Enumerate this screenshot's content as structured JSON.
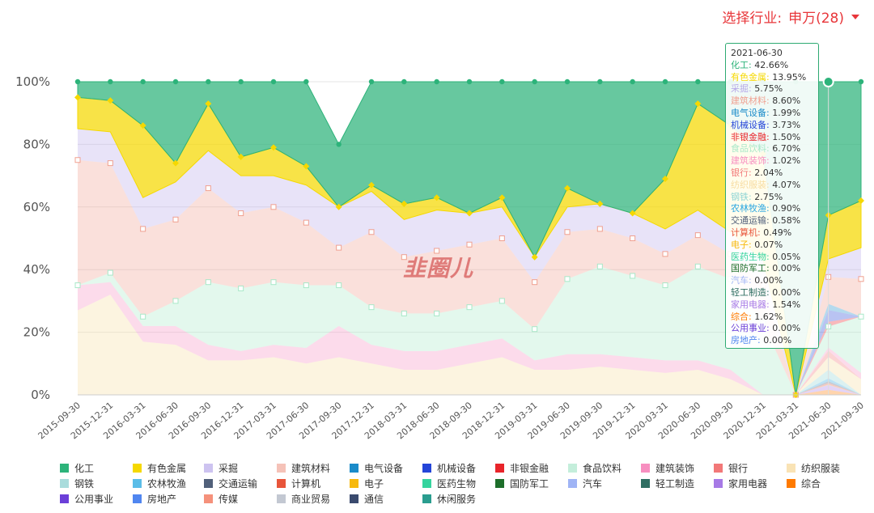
{
  "header": {
    "selector_label": "选择行业:",
    "selector_value": "申万(28)"
  },
  "watermark": "韭圈儿",
  "tooltip": {
    "date": "2021-06-30",
    "rows": [
      {
        "name": "化工",
        "value": "42.66%",
        "color": "#2db37a"
      },
      {
        "name": "有色金属",
        "value": "13.95%",
        "color": "#f5d800"
      },
      {
        "name": "采掘",
        "value": "5.75%",
        "color": "#b7a9e8"
      },
      {
        "name": "建筑材料",
        "value": "8.60%",
        "color": "#f0a090"
      },
      {
        "name": "电气设备",
        "value": "1.99%",
        "color": "#1a8bc9"
      },
      {
        "name": "机械设备",
        "value": "3.73%",
        "color": "#2445d8"
      },
      {
        "name": "非银金融",
        "value": "1.50%",
        "color": "#e8242a"
      },
      {
        "name": "食品饮料",
        "value": "6.70%",
        "color": "#a8e8c8"
      },
      {
        "name": "建筑装饰",
        "value": "1.02%",
        "color": "#f78fc0"
      },
      {
        "name": "银行",
        "value": "2.04%",
        "color": "#f27878"
      },
      {
        "name": "纺织服装",
        "value": "4.07%",
        "color": "#f7dca0"
      },
      {
        "name": "钢铁",
        "value": "2.75%",
        "color": "#8ed4d4"
      },
      {
        "name": "农林牧渔",
        "value": "0.90%",
        "color": "#2aa6e0"
      },
      {
        "name": "交通运输",
        "value": "0.58%",
        "color": "#51607a"
      },
      {
        "name": "计算机",
        "value": "0.49%",
        "color": "#e8553a"
      },
      {
        "name": "电子",
        "value": "0.07%",
        "color": "#f7b90e"
      },
      {
        "name": "医药生物",
        "value": "0.05%",
        "color": "#36d49e"
      },
      {
        "name": "国防军工",
        "value": "0.00%",
        "color": "#1d6e2a"
      },
      {
        "name": "汽车",
        "value": "0.00%",
        "color": "#9fb4f5"
      },
      {
        "name": "轻工制造",
        "value": "0.00%",
        "color": "#2f6e62"
      },
      {
        "name": "家用电器",
        "value": "1.54%",
        "color": "#a77ae6"
      },
      {
        "name": "综合",
        "value": "1.62%",
        "color": "#ff7a00"
      },
      {
        "name": "公用事业",
        "value": "0.00%",
        "color": "#6b3fd8"
      },
      {
        "name": "房地产",
        "value": "0.00%",
        "color": "#5086f0"
      }
    ]
  },
  "chart_data": {
    "type": "area",
    "stacked_percent": true,
    "title": "",
    "ylim": [
      0,
      100
    ],
    "y_ticks": [
      "0%",
      "20%",
      "40%",
      "60%",
      "80%",
      "100%"
    ],
    "x": [
      "2015-09-30",
      "2015-12-31",
      "2016-03-31",
      "2016-06-30",
      "2016-09-30",
      "2016-12-31",
      "2017-03-31",
      "2017-06-30",
      "2017-09-30",
      "2017-12-31",
      "2018-03-31",
      "2018-06-30",
      "2018-09-30",
      "2018-12-31",
      "2019-03-31",
      "2019-06-30",
      "2019-09-30",
      "2019-12-31",
      "2020-03-31",
      "2020-06-30",
      "2020-09-30",
      "2020-12-31",
      "2021-03-31",
      "2021-06-30",
      "2021-09-30"
    ],
    "x_labels": [
      "2015-09-30",
      "2015-12-31",
      "2016-03-31",
      "2016-06-30",
      "2016-09-30",
      "2016-12-31",
      "2017-03-31",
      "2017-06-30",
      "2017-09-30",
      "2017-12-31",
      "2018-03-31",
      "2018-06-30",
      "2018-09-30",
      "2018-12-31",
      "2019-03-31",
      "2019-06-30",
      "2019-09-30",
      "2019-12-31",
      "2020-03-31",
      "2020-06-30",
      "2020-09-30",
      "2020-12-31",
      "2021-03-31",
      "2021-06-30",
      "2021-09-30"
    ],
    "series": [
      {
        "name": "房地产",
        "color": "#5086f0",
        "values": [
          0,
          0,
          0,
          0,
          0,
          0,
          0,
          0,
          0,
          0,
          0,
          0,
          0,
          0,
          0,
          0,
          0,
          0,
          0,
          0,
          0,
          0,
          0,
          0,
          0
        ]
      },
      {
        "name": "公用事业",
        "color": "#6b3fd8",
        "values": [
          0,
          0,
          0,
          0,
          0,
          0,
          0,
          0,
          0,
          0,
          0,
          0,
          0,
          0,
          0,
          0,
          0,
          0,
          0,
          0,
          0,
          0,
          0,
          0,
          0
        ]
      },
      {
        "name": "综合",
        "color": "#ff7a00",
        "values": [
          0,
          0,
          0,
          0,
          0,
          0,
          0,
          0,
          0,
          0,
          0,
          0,
          0,
          0,
          0,
          0,
          0,
          0,
          0,
          0,
          0,
          0,
          0,
          1.62,
          0
        ]
      },
      {
        "name": "家用电器",
        "color": "#a77ae6",
        "values": [
          0,
          0,
          0,
          0,
          0,
          0,
          0,
          0,
          0,
          0,
          0,
          0,
          0,
          0,
          0,
          0,
          0,
          0,
          0,
          0,
          0,
          0,
          0,
          1.54,
          0
        ]
      },
      {
        "name": "轻工制造",
        "color": "#2f6e62",
        "values": [
          0,
          0,
          0,
          0,
          0,
          0,
          0,
          0,
          0,
          0,
          0,
          0,
          0,
          0,
          0,
          0,
          0,
          0,
          0,
          0,
          0,
          0,
          0,
          0,
          0
        ]
      },
      {
        "name": "汽车",
        "color": "#9fb4f5",
        "values": [
          0,
          0,
          0,
          0,
          0,
          0,
          0,
          0,
          0,
          0,
          0,
          0,
          0,
          0,
          0,
          0,
          0,
          0,
          0,
          0,
          0,
          0,
          0,
          0,
          0
        ]
      },
      {
        "name": "国防军工",
        "color": "#1d6e2a",
        "values": [
          0,
          0,
          0,
          0,
          0,
          0,
          0,
          0,
          0,
          0,
          0,
          0,
          0,
          0,
          0,
          0,
          0,
          0,
          0,
          0,
          0,
          0,
          0,
          0,
          0
        ]
      },
      {
        "name": "医药生物",
        "color": "#36d49e",
        "values": [
          0,
          0,
          0,
          0,
          0,
          0,
          0,
          0,
          0,
          0,
          0,
          0,
          0,
          0,
          0,
          0,
          0,
          0,
          0,
          0,
          0,
          0,
          0,
          0.05,
          0
        ]
      },
      {
        "name": "电子",
        "color": "#f7b90e",
        "values": [
          0,
          0,
          0,
          0,
          0,
          0,
          0,
          0,
          0,
          0,
          0,
          0,
          0,
          0,
          0,
          0,
          0,
          0,
          0,
          0,
          0,
          0,
          0,
          0.07,
          0
        ]
      },
      {
        "name": "计算机",
        "color": "#e8553a",
        "values": [
          0,
          0,
          0,
          0,
          0,
          0,
          0,
          0,
          0,
          0,
          0,
          0,
          0,
          0,
          0,
          0,
          0,
          0,
          0,
          0,
          0,
          0,
          0,
          0.49,
          0
        ]
      },
      {
        "name": "交通运输",
        "color": "#51607a",
        "values": [
          0,
          0,
          0,
          0,
          0,
          0,
          0,
          0,
          0,
          0,
          0,
          0,
          0,
          0,
          0,
          0,
          0,
          0,
          0,
          0,
          0,
          0,
          0,
          0.58,
          0
        ]
      },
      {
        "name": "农林牧渔",
        "color": "#2aa6e0",
        "values": [
          0,
          0,
          0,
          0,
          0,
          0,
          0,
          0,
          0,
          0,
          0,
          0,
          0,
          0,
          0,
          0,
          0,
          0,
          0,
          0,
          0,
          0,
          0,
          0.9,
          0
        ]
      },
      {
        "name": "钢铁",
        "color": "#8ed4d4",
        "values": [
          0,
          0,
          0,
          0,
          0,
          0,
          0,
          0,
          0,
          0,
          0,
          0,
          0,
          0,
          0,
          0,
          0,
          0,
          0,
          0,
          0,
          0,
          0,
          2.75,
          0
        ]
      },
      {
        "name": "纺织服装",
        "color": "#f7dca0",
        "values": [
          27,
          32,
          17,
          16,
          11,
          11,
          12,
          10,
          12,
          10,
          8,
          8,
          10,
          12,
          8,
          8,
          9,
          8,
          7,
          8,
          5,
          0,
          0,
          4.07,
          5
        ]
      },
      {
        "name": "银行",
        "color": "#f27878",
        "values": [
          0,
          0,
          0,
          0,
          0,
          0,
          0,
          0,
          0,
          0,
          0,
          0,
          0,
          0,
          0,
          0,
          0,
          0,
          0,
          0,
          0,
          0,
          0,
          2.04,
          0
        ]
      },
      {
        "name": "建筑装饰",
        "color": "#f78fc0",
        "values": [
          8,
          4,
          5,
          6,
          5,
          3,
          4,
          5,
          10,
          6,
          6,
          6,
          6,
          6,
          3,
          5,
          4,
          4,
          4,
          3,
          3,
          0,
          0,
          1.02,
          2
        ]
      },
      {
        "name": "食品饮料",
        "color": "#a8e8c8",
        "values": [
          0,
          3,
          3,
          8,
          20,
          20,
          20,
          20,
          13,
          12,
          12,
          12,
          12,
          12,
          10,
          24,
          28,
          26,
          24,
          30,
          29,
          23,
          0,
          6.7,
          18
        ]
      },
      {
        "name": "非银金融",
        "color": "#e8242a",
        "values": [
          0,
          0,
          0,
          0,
          0,
          0,
          0,
          0,
          0,
          0,
          0,
          0,
          0,
          0,
          0,
          0,
          0,
          0,
          0,
          0,
          0,
          0,
          0,
          1.5,
          0
        ]
      },
      {
        "name": "机械设备",
        "color": "#2445d8",
        "values": [
          0,
          0,
          0,
          0,
          0,
          0,
          0,
          0,
          0,
          0,
          0,
          0,
          0,
          0,
          0,
          0,
          0,
          0,
          0,
          0,
          0,
          0,
          0,
          3.73,
          0
        ]
      },
      {
        "name": "电气设备",
        "color": "#1a8bc9",
        "values": [
          0,
          0,
          0,
          0,
          0,
          0,
          0,
          0,
          0,
          0,
          0,
          0,
          0,
          0,
          0,
          0,
          0,
          0,
          0,
          0,
          0,
          0,
          0,
          1.99,
          0
        ]
      },
      {
        "name": "建筑材料",
        "color": "#f0a090",
        "values": [
          40,
          35,
          28,
          26,
          30,
          24,
          24,
          20,
          12,
          24,
          18,
          20,
          20,
          20,
          15,
          15,
          12,
          12,
          10,
          10,
          8,
          12,
          0,
          8.6,
          12
        ]
      },
      {
        "name": "采掘",
        "color": "#b7a9e8",
        "values": [
          10,
          10,
          10,
          12,
          12,
          12,
          10,
          12,
          13,
          13,
          12,
          13,
          10,
          10,
          8,
          8,
          8,
          8,
          8,
          8,
          7,
          8,
          0,
          5.75,
          10
        ]
      },
      {
        "name": "有色金属",
        "color": "#f5d800",
        "values": [
          10,
          10,
          23,
          6,
          15,
          6,
          9,
          6,
          0,
          2,
          5,
          4,
          0,
          3,
          0,
          6,
          0,
          0,
          16,
          34,
          34,
          34,
          0,
          13.95,
          15
        ]
      },
      {
        "name": "化工",
        "color": "#2db37a",
        "values": [
          5,
          6,
          14,
          26,
          7,
          24,
          21,
          27,
          20,
          33,
          39,
          37,
          42,
          37,
          56,
          34,
          39,
          42,
          31,
          7,
          14,
          23,
          100,
          42.66,
          38
        ]
      }
    ],
    "legend": [
      "化工",
      "有色金属",
      "采掘",
      "建筑材料",
      "电气设备",
      "机械设备",
      "非银金融",
      "食品饮料",
      "建筑装饰",
      "银行",
      "纺织服装",
      "钢铁",
      "农林牧渔",
      "交通运输",
      "计算机",
      "电子",
      "医药生物",
      "国防军工",
      "汽车",
      "轻工制造",
      "家用电器",
      "综合",
      "公用事业",
      "房地产",
      "传媒",
      "商业贸易",
      "通信",
      "休闲服务"
    ],
    "legend_colors": [
      "#2db37a",
      "#f5d800",
      "#cdc3f0",
      "#f5c2b8",
      "#1a8bc9",
      "#2445d8",
      "#e8242a",
      "#c4eedb",
      "#f78fc0",
      "#f27878",
      "#f9e3b5",
      "#a9dcdc",
      "#5bbde8",
      "#51607a",
      "#e8553a",
      "#f7b90e",
      "#36d49e",
      "#1d6e2a",
      "#9fb4f5",
      "#2f6e62",
      "#a77ae6",
      "#ff7a00",
      "#6b3fd8",
      "#5086f0",
      "#f5917b",
      "#c3c8d2",
      "#3a4a6e",
      "#2a9d8f"
    ]
  }
}
